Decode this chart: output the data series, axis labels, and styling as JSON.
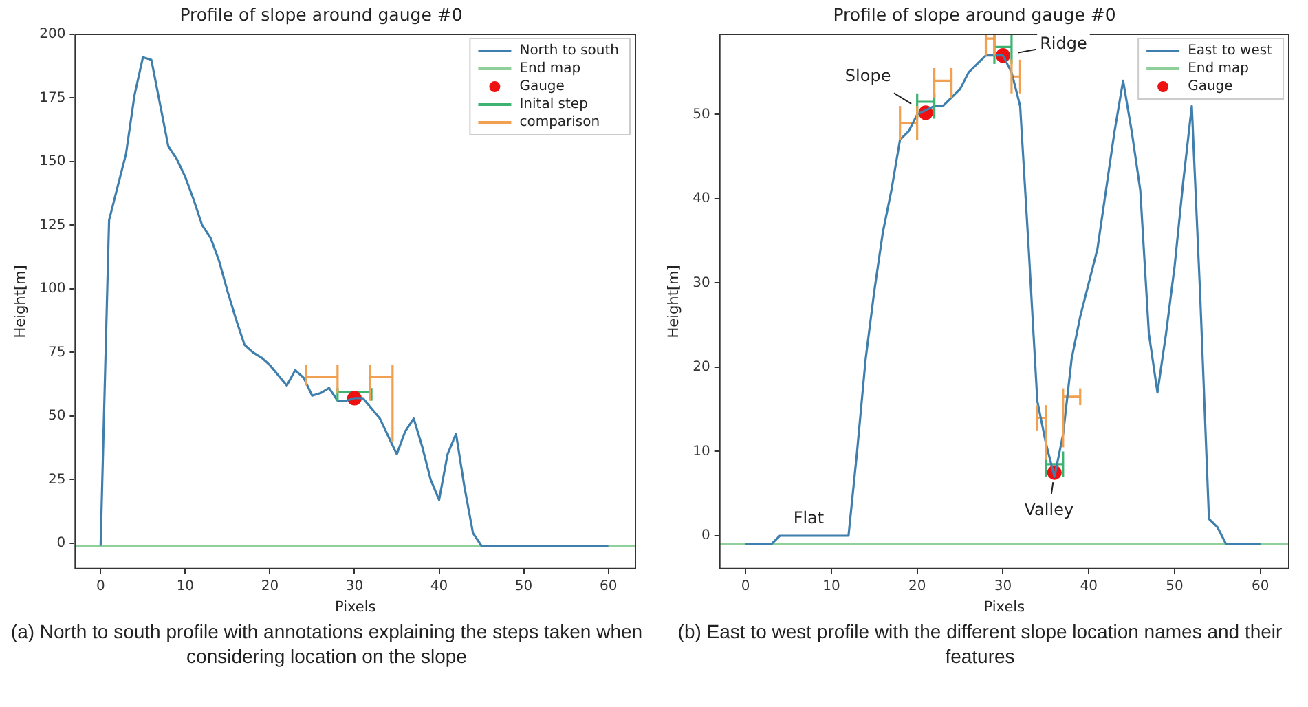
{
  "chart_data": [
    {
      "type": "line",
      "title": "Profile of slope around gauge #0",
      "xlabel": "Pixels",
      "ylabel": "Height[m]",
      "xlim": [
        -3,
        63.2
      ],
      "ylim": [
        -10,
        200
      ],
      "xticks": [
        0,
        10,
        20,
        30,
        40,
        50,
        60
      ],
      "yticks": [
        0,
        25,
        50,
        75,
        100,
        125,
        150,
        175,
        200
      ],
      "grid": false,
      "legend": "top right",
      "annotations": [
        "(a) North to south profile with annotations explaining the steps taken when considering location on the slope"
      ],
      "series": [
        {
          "name": "North to south",
          "type": "line",
          "color": "#3f7fad",
          "x": [
            0,
            1,
            2,
            3,
            4,
            5,
            6,
            7,
            8,
            9,
            10,
            11,
            12,
            13,
            14,
            15,
            16,
            17,
            18,
            19,
            20,
            21,
            22,
            23,
            24,
            25,
            26,
            27,
            28,
            29,
            30,
            31,
            32,
            33,
            34,
            35,
            36,
            37,
            38,
            39,
            40,
            41,
            42,
            43,
            44,
            45,
            60
          ],
          "values": [
            -1,
            127,
            140,
            153,
            176,
            191,
            190,
            173,
            156,
            151,
            144,
            135,
            125,
            120,
            111,
            99,
            88,
            78,
            75,
            73,
            70,
            66,
            62,
            68,
            65,
            58,
            59,
            61,
            56,
            56,
            57,
            57,
            53,
            49,
            42,
            35,
            44,
            49,
            38,
            25,
            17,
            35,
            43,
            22,
            4,
            -1,
            -1
          ]
        },
        {
          "name": "End map",
          "type": "line",
          "color": "#8fcf9a",
          "x": [
            -3,
            63.2
          ],
          "values": [
            -1,
            -1
          ]
        },
        {
          "name": "Gauge",
          "type": "scatter",
          "color": "#ee1111",
          "x": [
            30
          ],
          "values": [
            57
          ]
        },
        {
          "name": "Inital step",
          "type": "line",
          "color": "#3cb371",
          "x": [
            28,
            32
          ],
          "values": [
            59.5,
            59.5
          ],
          "errors": [
            [
              56,
              61
            ],
            [
              56,
              61
            ]
          ]
        },
        {
          "name": "comparison",
          "type": "line",
          "color": "#f0a050",
          "x": [
            24.3,
            28,
            30,
            31.8,
            34.5
          ],
          "values": [
            65.5,
            65.5,
            null,
            65.5,
            65.5
          ],
          "errors": [
            [
              62,
              70
            ],
            [
              59,
              70
            ],
            null,
            [
              56,
              70
            ],
            [
              40,
              70
            ]
          ]
        }
      ]
    },
    {
      "type": "line",
      "title": "Profile of slope around gauge #0",
      "xlabel": "Pixels",
      "ylabel": "Height[m]",
      "xlim": [
        -3,
        63.3
      ],
      "ylim": [
        -3.9,
        59.5
      ],
      "xticks": [
        0,
        10,
        20,
        30,
        40,
        50,
        60
      ],
      "yticks": [
        0,
        10,
        20,
        30,
        40,
        50
      ],
      "grid": false,
      "legend": "top right",
      "annotations": [
        {
          "text": "Slope",
          "x": 21,
          "y": 50.2
        },
        {
          "text": "Ridge",
          "x": 30,
          "y": 57
        },
        {
          "text": "Valley",
          "x": 36,
          "y": 7.5
        },
        {
          "text": "Flat",
          "x": 8,
          "y": 0
        },
        "(b) East to west profile with the different slope location names and their features"
      ],
      "series": [
        {
          "name": "East to west",
          "type": "line",
          "color": "#3f7fad",
          "x": [
            0,
            1,
            2,
            3,
            4,
            5,
            6,
            7,
            8,
            9,
            10,
            11,
            12,
            13,
            14,
            15,
            16,
            17,
            18,
            19,
            20,
            21,
            22,
            23,
            24,
            25,
            26,
            27,
            28,
            29,
            30,
            31,
            32,
            33,
            34,
            35,
            36,
            37,
            38,
            39,
            40,
            41,
            42,
            43,
            44,
            45,
            46,
            47,
            48,
            49,
            50,
            51,
            52,
            53,
            54,
            55,
            56,
            57,
            58,
            59,
            60
          ],
          "values": [
            -1,
            -1,
            -1,
            -1,
            0,
            0,
            0,
            0,
            0,
            0,
            0,
            0,
            0,
            10,
            21,
            29,
            36,
            41,
            47,
            48,
            50,
            50.5,
            51,
            51,
            52,
            53,
            55,
            56,
            57,
            57,
            57,
            55,
            51,
            34,
            16,
            11,
            7,
            12,
            21,
            26,
            30,
            34,
            41,
            48,
            54,
            48,
            41,
            24,
            17,
            24,
            32,
            42,
            51,
            28,
            2,
            1,
            -1,
            -1,
            -1,
            -1,
            -1
          ]
        },
        {
          "name": "End map",
          "type": "line",
          "color": "#8fcf9a",
          "x": [
            -3,
            63.3
          ],
          "values": [
            -1,
            -1
          ]
        },
        {
          "name": "Gauge",
          "type": "scatter",
          "color": "#ee1111",
          "x": [
            21,
            30,
            36
          ],
          "values": [
            50.2,
            57,
            7.5
          ]
        },
        {
          "type": "line",
          "color": "#3cb371",
          "x": [
            20,
            22,
            25,
            29,
            31,
            33,
            35,
            37
          ],
          "values": [
            51.5,
            51.5,
            null,
            58,
            58,
            null,
            8.5,
            8.5
          ],
          "errors": [
            [
              49.5,
              52.5
            ],
            [
              49.5,
              52.5
            ],
            null,
            [
              56,
              59.5
            ],
            [
              56,
              59.5
            ],
            null,
            [
              7,
              10
            ],
            [
              7,
              10
            ]
          ]
        },
        {
          "type": "line",
          "color": "#f0a050",
          "x": [
            18,
            20,
            21,
            22,
            24,
            26,
            28,
            29,
            30,
            31,
            32,
            33,
            34,
            35,
            36,
            37,
            39
          ],
          "values": [
            49,
            49,
            null,
            54,
            54,
            null,
            59,
            59,
            null,
            54.5,
            54.5,
            null,
            14,
            14,
            null,
            16.5,
            16.5
          ],
          "errors": [
            [
              47,
              51
            ],
            [
              47,
              51
            ],
            null,
            [
              52,
              55.5
            ],
            [
              52,
              55.5
            ],
            null,
            [
              57,
              59.5
            ],
            [
              57,
              59.5
            ],
            null,
            [
              52.5,
              56.5
            ],
            [
              52.5,
              56.5
            ],
            null,
            [
              12.5,
              15.5
            ],
            [
              9,
              15.5
            ],
            null,
            [
              10.5,
              17.5
            ],
            [
              15.5,
              17.5
            ]
          ]
        }
      ]
    }
  ]
}
